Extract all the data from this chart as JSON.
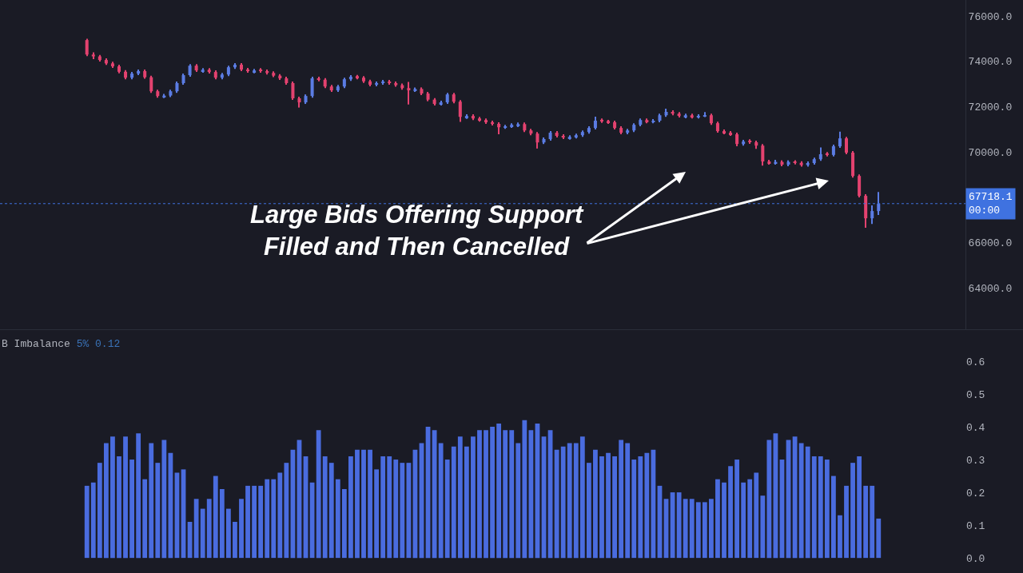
{
  "chart_data": [
    {
      "type": "candlestick",
      "categories": [
        null,
        null,
        null,
        null,
        null,
        null,
        null,
        null,
        null,
        null,
        null,
        null,
        null,
        null,
        null,
        null,
        null,
        null,
        null,
        null,
        null,
        null,
        null,
        null,
        null,
        null,
        null,
        null,
        null,
        null,
        null,
        null,
        null,
        null,
        null,
        null,
        null,
        null,
        null,
        null,
        null,
        null,
        null,
        null,
        null,
        null,
        null,
        null,
        null,
        null,
        null,
        null,
        null,
        null,
        null,
        null,
        null,
        null,
        null,
        null,
        null,
        null,
        null,
        null,
        null,
        null,
        null,
        null,
        null,
        null,
        null,
        null,
        null,
        null,
        null,
        null,
        null,
        null,
        null,
        null,
        null,
        null,
        null,
        null,
        null,
        null,
        null,
        null,
        null,
        null,
        null,
        null,
        null,
        null,
        null,
        null,
        null,
        null,
        null,
        null,
        null,
        null,
        null,
        null,
        null,
        null,
        null,
        null,
        null,
        null,
        null,
        null,
        null,
        null,
        null,
        null,
        null,
        null,
        null,
        null,
        null,
        null,
        null,
        null,
        null,
        null,
        null,
        null,
        null,
        null,
        null,
        null,
        null,
        null,
        null,
        null,
        null,
        null,
        null,
        null,
        null,
        null,
        null,
        null,
        null,
        null,
        null,
        null,
        null,
        null
      ],
      "ohlc": [
        null,
        null,
        null,
        null,
        null,
        null,
        null,
        null,
        null,
        null,
        null,
        null,
        null,
        [
          74940,
          75000,
          74230,
          74300
        ],
        [
          74300,
          74400,
          74100,
          74220
        ],
        [
          74220,
          74280,
          73990,
          74060
        ],
        [
          74060,
          74130,
          73840,
          73910
        ],
        [
          73910,
          73980,
          73710,
          73780
        ],
        [
          73780,
          73850,
          73470,
          73540
        ],
        [
          73540,
          73610,
          73210,
          73280
        ],
        [
          73280,
          73530,
          73210,
          73460
        ],
        [
          73460,
          73640,
          73390,
          73570
        ],
        [
          73570,
          73640,
          73230,
          73300
        ],
        [
          73300,
          73370,
          72610,
          72680
        ],
        [
          72680,
          72750,
          72400,
          72470
        ],
        [
          72420,
          72560,
          72380,
          72490
        ],
        [
          72490,
          72750,
          72420,
          72680
        ],
        [
          72680,
          73110,
          72610,
          73040
        ],
        [
          73040,
          73460,
          72970,
          73390
        ],
        [
          73390,
          73880,
          73320,
          73810
        ],
        [
          73810,
          73880,
          73530,
          73600
        ],
        [
          73560,
          73700,
          73500,
          73630
        ],
        [
          73630,
          73700,
          73460,
          73530
        ],
        [
          73530,
          73600,
          73210,
          73280
        ],
        [
          73280,
          73490,
          73210,
          73420
        ],
        [
          73420,
          73810,
          73350,
          73740
        ],
        [
          73740,
          73920,
          73670,
          73850
        ],
        [
          73850,
          73920,
          73570,
          73640
        ],
        [
          73640,
          73710,
          73500,
          73570
        ],
        [
          73530,
          73670,
          73470,
          73600
        ],
        [
          73640,
          73700,
          73500,
          73570
        ],
        [
          73570,
          73640,
          73420,
          73490
        ],
        [
          73490,
          73560,
          73300,
          73370
        ],
        [
          73370,
          73440,
          73180,
          73250
        ],
        [
          73250,
          73320,
          72970,
          73040
        ],
        [
          73040,
          73110,
          72300,
          72370
        ],
        [
          72370,
          72440,
          71960,
          72190
        ],
        [
          72190,
          72540,
          72120,
          72470
        ],
        [
          72470,
          73320,
          72400,
          73250
        ],
        [
          73250,
          73320,
          73120,
          73190
        ],
        [
          73190,
          73260,
          72820,
          72890
        ],
        [
          72890,
          72960,
          72650,
          72720
        ],
        [
          72720,
          72960,
          72650,
          72890
        ],
        [
          72890,
          73280,
          72820,
          73210
        ],
        [
          73210,
          73390,
          73140,
          73320
        ],
        [
          73350,
          73400,
          73210,
          73280
        ],
        [
          73280,
          73350,
          73050,
          73120
        ],
        [
          73120,
          73190,
          72900,
          72970
        ],
        [
          72970,
          73110,
          72900,
          73040
        ],
        [
          73040,
          73180,
          72970,
          73110
        ],
        [
          73110,
          73180,
          72970,
          73040
        ],
        [
          73040,
          73110,
          72880,
          72950
        ],
        [
          72950,
          73020,
          72750,
          72820
        ],
        [
          72820,
          73090,
          72100,
          72750
        ],
        [
          72710,
          72850,
          72650,
          72780
        ],
        [
          72780,
          72850,
          72510,
          72580
        ],
        [
          72580,
          72650,
          72240,
          72310
        ],
        [
          72310,
          72380,
          72050,
          72120
        ],
        [
          72120,
          72260,
          72050,
          72190
        ],
        [
          72190,
          72610,
          72120,
          72540
        ],
        [
          72540,
          72610,
          72150,
          72220
        ],
        [
          72220,
          72290,
          71330,
          71550
        ],
        [
          71520,
          71660,
          71460,
          71590
        ],
        [
          71590,
          71660,
          71410,
          71480
        ],
        [
          71480,
          71550,
          71340,
          71410
        ],
        [
          71410,
          71480,
          71240,
          71310
        ],
        [
          71310,
          71380,
          71170,
          71240
        ],
        [
          71240,
          71310,
          70780,
          71090
        ],
        [
          71070,
          71200,
          71020,
          71130
        ],
        [
          71130,
          71270,
          71060,
          71200
        ],
        [
          71160,
          71300,
          71100,
          71230
        ],
        [
          71230,
          71300,
          70880,
          70950
        ],
        [
          70950,
          71020,
          70740,
          70810
        ],
        [
          70810,
          70880,
          70150,
          70420
        ],
        [
          70420,
          70640,
          70350,
          70570
        ],
        [
          70570,
          70920,
          70500,
          70850
        ],
        [
          70850,
          70920,
          70640,
          70710
        ],
        [
          70710,
          70780,
          70570,
          70640
        ],
        [
          70600,
          70740,
          70540,
          70670
        ],
        [
          70670,
          70810,
          70600,
          70740
        ],
        [
          70740,
          70950,
          70670,
          70880
        ],
        [
          70880,
          71130,
          70810,
          71060
        ],
        [
          71060,
          71560,
          70990,
          71380
        ],
        [
          71420,
          71480,
          71280,
          71350
        ],
        [
          71370,
          71420,
          71240,
          71310
        ],
        [
          71310,
          71380,
          70990,
          71060
        ],
        [
          71060,
          71130,
          70780,
          70850
        ],
        [
          70850,
          71020,
          70780,
          70950
        ],
        [
          70950,
          71270,
          70880,
          71200
        ],
        [
          71200,
          71480,
          71130,
          71410
        ],
        [
          71410,
          71480,
          71270,
          71340
        ],
        [
          71320,
          71450,
          71270,
          71380
        ],
        [
          71380,
          71690,
          71310,
          71620
        ],
        [
          71620,
          71910,
          71550,
          71770
        ],
        [
          71770,
          71840,
          71620,
          71690
        ],
        [
          71690,
          71760,
          71520,
          71590
        ],
        [
          71550,
          71690,
          71490,
          71620
        ],
        [
          71620,
          71690,
          71480,
          71550
        ],
        [
          71530,
          71660,
          71480,
          71590
        ],
        [
          71560,
          71760,
          71540,
          71620
        ],
        [
          71620,
          71690,
          71200,
          71270
        ],
        [
          71270,
          71340,
          70850,
          70920
        ],
        [
          70920,
          70990,
          70780,
          70850
        ],
        [
          70850,
          70920,
          70710,
          70780
        ],
        [
          70780,
          70850,
          70250,
          70350
        ],
        [
          70350,
          70530,
          70280,
          70460
        ],
        [
          70500,
          70560,
          70360,
          70430
        ],
        [
          70430,
          70500,
          70140,
          70280
        ],
        [
          70280,
          70350,
          69400,
          69580
        ],
        [
          69580,
          69650,
          69440,
          69510
        ],
        [
          69500,
          69650,
          69440,
          69560
        ],
        [
          69560,
          69630,
          69370,
          69440
        ],
        [
          69440,
          69630,
          69370,
          69560
        ],
        [
          69580,
          69630,
          69450,
          69520
        ],
        [
          69520,
          69590,
          69350,
          69420
        ],
        [
          69420,
          69580,
          69350,
          69510
        ],
        [
          69510,
          69750,
          69440,
          69680
        ],
        [
          69680,
          70200,
          69610,
          69900
        ],
        [
          69940,
          70000,
          69800,
          69870
        ],
        [
          69870,
          70320,
          69800,
          70250
        ],
        [
          70250,
          70900,
          70180,
          70600
        ],
        [
          70600,
          70670,
          69900,
          69970
        ],
        [
          69970,
          70040,
          68870,
          68940
        ],
        [
          68940,
          69010,
          67990,
          68060
        ],
        [
          68060,
          68130,
          66650,
          67070
        ],
        [
          67070,
          67640,
          66820,
          67390
        ],
        [
          67390,
          68230,
          67220,
          67718.1
        ],
        null,
        null,
        null,
        null,
        null,
        null,
        null,
        null,
        null,
        null,
        null,
        null,
        null
      ],
      "colors": [
        null,
        null,
        null,
        null,
        null,
        null,
        null,
        null,
        null,
        null,
        null,
        null,
        null,
        "#e3426f",
        "#e3426f",
        "#e3426f",
        "#e3426f",
        "#e3426f",
        "#e3426f",
        "#e3426f",
        "#5b7ce3",
        "#5b7ce3",
        "#e3426f",
        "#e3426f",
        "#e3426f",
        "#5b7ce3",
        "#5b7ce3",
        "#5b7ce3",
        "#5b7ce3",
        "#5b7ce3",
        "#e3426f",
        "#5b7ce3",
        "#e3426f",
        "#e3426f",
        "#5b7ce3",
        "#5b7ce3",
        "#5b7ce3",
        "#e3426f",
        "#e3426f",
        "#5b7ce3",
        "#e3426f",
        "#e3426f",
        "#e3426f",
        "#e3426f",
        "#e3426f",
        "#e3426f",
        "#e3426f",
        "#5b7ce3",
        "#5b7ce3",
        "#e3426f",
        "#e3426f",
        "#e3426f",
        "#5b7ce3",
        "#5b7ce3",
        "#5b7ce3",
        "#e3426f",
        "#e3426f",
        "#e3426f",
        "#5b7ce3",
        "#5b7ce3",
        "#e3426f",
        "#e3426f",
        "#e3426f",
        "#e3426f",
        "#5b7ce3",
        "#e3426f",
        "#e3426f",
        "#e3426f",
        "#5b7ce3",
        "#5b7ce3",
        "#e3426f",
        "#e3426f",
        "#5b7ce3",
        "#e3426f",
        "#e3426f",
        "#e3426f",
        "#e3426f",
        "#e3426f",
        "#5b7ce3",
        "#5b7ce3",
        "#5b7ce3",
        "#e3426f",
        "#e3426f",
        "#e3426f",
        "#5b7ce3",
        "#5b7ce3",
        "#e3426f",
        "#e3426f",
        "#5b7ce3",
        "#5b7ce3",
        "#5b7ce3",
        "#5b7ce3",
        "#5b7ce3",
        "#e3426f",
        "#e3426f",
        "#e3426f",
        "#e3426f",
        "#5b7ce3",
        "#5b7ce3",
        "#5b7ce3",
        "#e3426f",
        "#5b7ce3",
        "#5b7ce3",
        "#5b7ce3",
        "#e3426f",
        "#e3426f",
        "#5b7ce3",
        "#e3426f",
        "#5b7ce3",
        "#5b7ce3",
        "#e3426f",
        "#e3426f",
        "#e3426f",
        "#e3426f",
        "#e3426f",
        "#5b7ce3",
        "#e3426f",
        "#e3426f",
        "#e3426f",
        "#e3426f",
        "#5b7ce3",
        "#e3426f",
        "#5b7ce3",
        "#e3426f",
        "#e3426f",
        "#5b7ce3",
        "#5b7ce3",
        "#5b7ce3",
        "#e3426f",
        "#5b7ce3",
        "#5b7ce3",
        "#e3426f",
        "#e3426f",
        "#e3426f",
        "#e3426f",
        "#5b7ce3",
        "#5b7ce3",
        null,
        null,
        null,
        null,
        null,
        null,
        null,
        null,
        null,
        null,
        null,
        null,
        null
      ],
      "ylim": [
        62170,
        76710
      ],
      "yticks": [
        {
          "value": 64000,
          "label": "64000.0"
        },
        {
          "value": 66000,
          "label": "66000.0"
        },
        {
          "value": 70000,
          "label": "70000.0"
        },
        {
          "value": 72000,
          "label": "72000.0"
        },
        {
          "value": 74000,
          "label": "74000.0"
        },
        {
          "value": 76000,
          "label": "76000.0"
        }
      ],
      "tick_labels": "y",
      "ref_lines": [
        {
          "axis": "y",
          "value": 67718.1,
          "label": "67718.1\n00:00",
          "color": "#3f72e0",
          "line_style": "dotted"
        }
      ],
      "annotations": [
        "Large Bids Offering Support\nFilled and Then Cancelled"
      ]
    },
    {
      "type": "bar",
      "title": "B Imbalance",
      "subtitle": "5% 0.12",
      "categories": [
        null,
        null,
        null,
        null,
        null,
        null,
        null,
        null,
        null,
        null,
        null,
        null,
        null,
        null,
        null,
        null,
        null,
        null,
        null,
        null,
        null,
        null,
        null,
        null,
        null,
        null,
        null,
        null,
        null,
        null,
        null,
        null,
        null,
        null,
        null,
        null,
        null,
        null,
        null,
        null,
        null,
        null,
        null,
        null,
        null,
        null,
        null,
        null,
        null,
        null,
        null,
        null,
        null,
        null,
        null,
        null,
        null,
        null,
        null,
        null,
        null,
        null,
        null,
        null,
        null,
        null,
        null,
        null,
        null,
        null,
        null,
        null,
        null,
        null,
        null,
        null,
        null,
        null,
        null,
        null,
        null,
        null,
        null,
        null,
        null,
        null,
        null,
        null,
        null,
        null,
        null,
        null,
        null,
        null,
        null,
        null,
        null,
        null,
        null,
        null,
        null,
        null,
        null,
        null,
        null,
        null,
        null,
        null,
        null,
        null,
        null,
        null,
        null,
        null,
        null,
        null,
        null,
        null,
        null,
        null,
        null,
        null,
        null,
        null,
        null,
        null,
        null,
        null,
        null,
        null,
        null,
        null,
        null,
        null,
        null,
        null,
        null,
        null,
        null,
        null,
        null,
        null,
        null,
        null,
        null,
        null,
        null,
        null,
        null,
        null
      ],
      "values": [
        null,
        null,
        null,
        null,
        null,
        null,
        null,
        null,
        null,
        null,
        null,
        null,
        null,
        0.22,
        0.23,
        0.29,
        0.35,
        0.37,
        0.31,
        0.37,
        0.3,
        0.38,
        0.24,
        0.35,
        0.29,
        0.36,
        0.32,
        0.26,
        0.27,
        0.11,
        0.18,
        0.15,
        0.18,
        0.25,
        0.21,
        0.15,
        0.11,
        0.18,
        0.22,
        0.22,
        0.22,
        0.24,
        0.24,
        0.26,
        0.29,
        0.33,
        0.36,
        0.31,
        0.23,
        0.39,
        0.31,
        0.29,
        0.24,
        0.21,
        0.31,
        0.33,
        0.33,
        0.33,
        0.27,
        0.31,
        0.31,
        0.3,
        0.29,
        0.29,
        0.33,
        0.35,
        0.4,
        0.39,
        0.35,
        0.3,
        0.34,
        0.37,
        0.34,
        0.37,
        0.39,
        0.39,
        0.4,
        0.41,
        0.39,
        0.39,
        0.35,
        0.42,
        0.39,
        0.41,
        0.37,
        0.39,
        0.33,
        0.34,
        0.35,
        0.35,
        0.37,
        0.29,
        0.33,
        0.31,
        0.32,
        0.31,
        0.36,
        0.35,
        0.3,
        0.31,
        0.32,
        0.33,
        0.22,
        0.18,
        0.2,
        0.2,
        0.18,
        0.18,
        0.17,
        0.17,
        0.18,
        0.24,
        0.23,
        0.28,
        0.3,
        0.23,
        0.24,
        0.26,
        0.19,
        0.36,
        0.38,
        0.3,
        0.36,
        0.37,
        0.35,
        0.34,
        0.31,
        0.31,
        0.3,
        0.25,
        0.13,
        0.22,
        0.29,
        0.31,
        0.22,
        0.22,
        0.12,
        null,
        null,
        null,
        null,
        null,
        null,
        null,
        null,
        null,
        null,
        null,
        null,
        null
      ],
      "color": "#4a6cdf",
      "ylim": [
        -0.046,
        0.695
      ],
      "yticks": [
        {
          "value": 0,
          "label": "0.0"
        },
        {
          "value": 0.1,
          "label": "0.1"
        },
        {
          "value": 0.2,
          "label": "0.2"
        },
        {
          "value": 0.3,
          "label": "0.3"
        },
        {
          "value": 0.4,
          "label": "0.4"
        },
        {
          "value": 0.5,
          "label": "0.5"
        },
        {
          "value": 0.6,
          "label": "0.6"
        }
      ],
      "tick_labels": "y"
    }
  ]
}
